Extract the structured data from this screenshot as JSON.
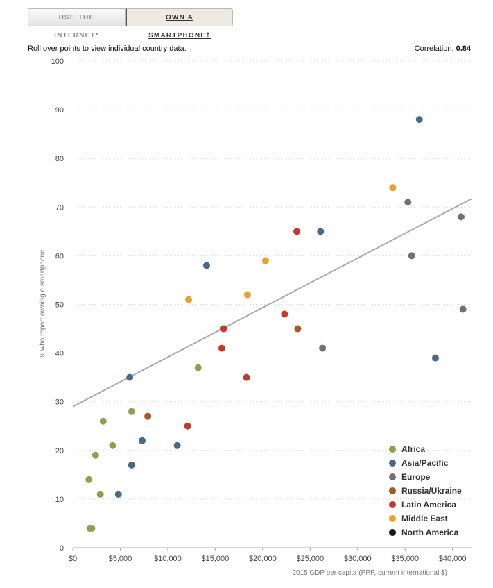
{
  "tabs": [
    {
      "label": "USE THE INTERNET*",
      "active": false
    },
    {
      "label": "OWN A SMARTPHONE†",
      "active": true
    }
  ],
  "instructions": "Roll over points to view individual country data.",
  "correlation_label": "Correlation:",
  "correlation_value": "0.84",
  "chart_data": {
    "type": "scatter",
    "xlabel": "2015 GDP per capita (PPP, current international $)",
    "ylabel": "% who report owning a smartphone",
    "xlim": [
      0,
      42000
    ],
    "ylim": [
      0,
      100
    ],
    "xticks": [
      0,
      5000,
      10000,
      15000,
      20000,
      25000,
      30000,
      35000,
      40000
    ],
    "xtick_labels": [
      "$0",
      "$5,000",
      "$10,000",
      "$15,000",
      "$20,000",
      "$25,000",
      "$30,000",
      "$35,000",
      "$40,000"
    ],
    "yticks": [
      0,
      10,
      20,
      30,
      40,
      50,
      60,
      70,
      80,
      90,
      100
    ],
    "ytick_labels": [
      "0",
      "10",
      "20",
      "30",
      "40",
      "50",
      "60",
      "70",
      "80",
      "90",
      "100"
    ],
    "grid": true,
    "trendline": {
      "x": [
        0,
        42000
      ],
      "y": [
        29,
        71.7
      ]
    },
    "legend_position": "bottom-right",
    "series": [
      {
        "name": "Africa",
        "color": "#8e9f4f",
        "points": [
          [
            1800,
            4
          ],
          [
            2000,
            4
          ],
          [
            1700,
            14
          ],
          [
            2400,
            19
          ],
          [
            2900,
            11
          ],
          [
            3200,
            26
          ],
          [
            4200,
            21
          ],
          [
            6200,
            28
          ],
          [
            13200,
            37
          ]
        ]
      },
      {
        "name": "Asia/Pacific",
        "color": "#456a8a",
        "points": [
          [
            4800,
            11
          ],
          [
            6000,
            35
          ],
          [
            6200,
            17
          ],
          [
            7300,
            22
          ],
          [
            11000,
            21
          ],
          [
            14100,
            58
          ],
          [
            26100,
            65
          ],
          [
            36500,
            88
          ],
          [
            38200,
            39
          ]
        ]
      },
      {
        "name": "Europe",
        "color": "#736f78",
        "points": [
          [
            26300,
            41
          ],
          [
            35300,
            71
          ],
          [
            35700,
            60
          ],
          [
            40900,
            68
          ],
          [
            41100,
            49
          ]
        ]
      },
      {
        "name": "Russia/Ukraine",
        "color": "#a35a26",
        "points": [
          [
            7900,
            27
          ],
          [
            23700,
            45
          ]
        ]
      },
      {
        "name": "Latin America",
        "color": "#c13a2c",
        "points": [
          [
            12100,
            25
          ],
          [
            15700,
            41
          ],
          [
            15900,
            45
          ],
          [
            18300,
            35
          ],
          [
            22300,
            48
          ],
          [
            23600,
            65
          ]
        ]
      },
      {
        "name": "Middle East",
        "color": "#e8a02e",
        "points": [
          [
            12200,
            51
          ],
          [
            18400,
            52
          ],
          [
            20300,
            59
          ],
          [
            33700,
            74
          ]
        ]
      },
      {
        "name": "North America",
        "color": "#1a1a1a",
        "points": []
      }
    ]
  }
}
